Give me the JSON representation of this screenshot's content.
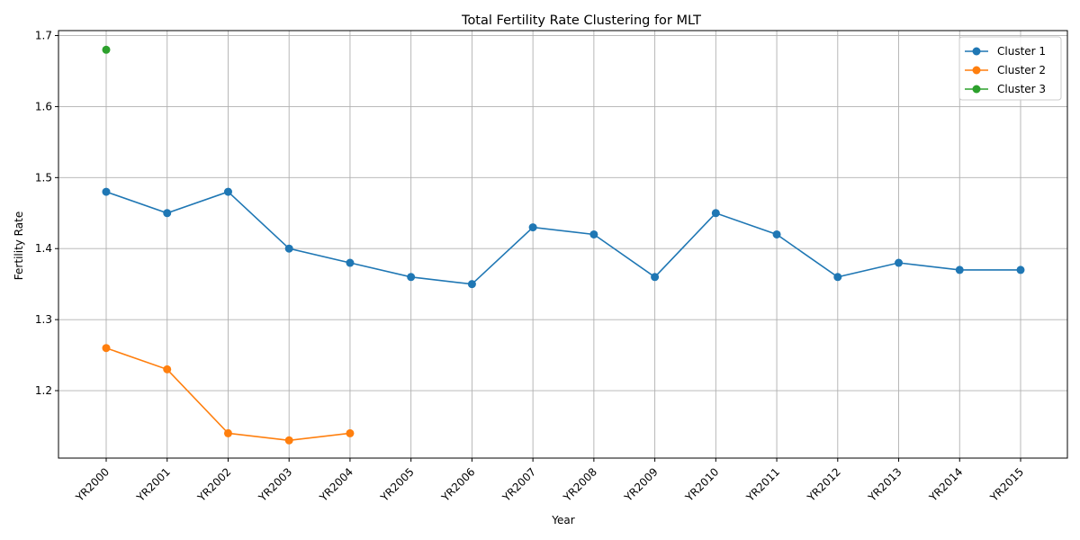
{
  "chart_data": {
    "type": "line",
    "title": "Total Fertility Rate Clustering for MLT",
    "xlabel": "Year",
    "ylabel": "Fertility Rate",
    "categories": [
      "YR2000",
      "YR2001",
      "YR2002",
      "YR2003",
      "YR2004",
      "YR2005",
      "YR2006",
      "YR2007",
      "YR2008",
      "YR2009",
      "YR2010",
      "YR2011",
      "YR2012",
      "YR2013",
      "YR2014",
      "YR2015"
    ],
    "y_ticks": [
      "1.2",
      "1.3",
      "1.4",
      "1.5",
      "1.6",
      "1.7"
    ],
    "ylim": [
      1.105,
      1.707
    ],
    "grid": true,
    "legend_position": "top-right",
    "series": [
      {
        "name": "Cluster 1",
        "color": "#1f77b4",
        "values": [
          1.48,
          1.45,
          1.48,
          1.4,
          1.38,
          1.36,
          1.35,
          1.43,
          1.42,
          1.36,
          1.45,
          1.42,
          1.36,
          1.38,
          1.37,
          1.37
        ]
      },
      {
        "name": "Cluster 2",
        "color": "#ff7f0e",
        "values": [
          1.26,
          1.23,
          1.14,
          1.13,
          1.14,
          null,
          null,
          null,
          null,
          null,
          null,
          null,
          null,
          null,
          null,
          null
        ]
      },
      {
        "name": "Cluster 3",
        "color": "#2ca02c",
        "values": [
          1.68,
          null,
          null,
          null,
          null,
          null,
          null,
          null,
          null,
          null,
          null,
          null,
          null,
          null,
          null,
          null
        ]
      }
    ]
  }
}
